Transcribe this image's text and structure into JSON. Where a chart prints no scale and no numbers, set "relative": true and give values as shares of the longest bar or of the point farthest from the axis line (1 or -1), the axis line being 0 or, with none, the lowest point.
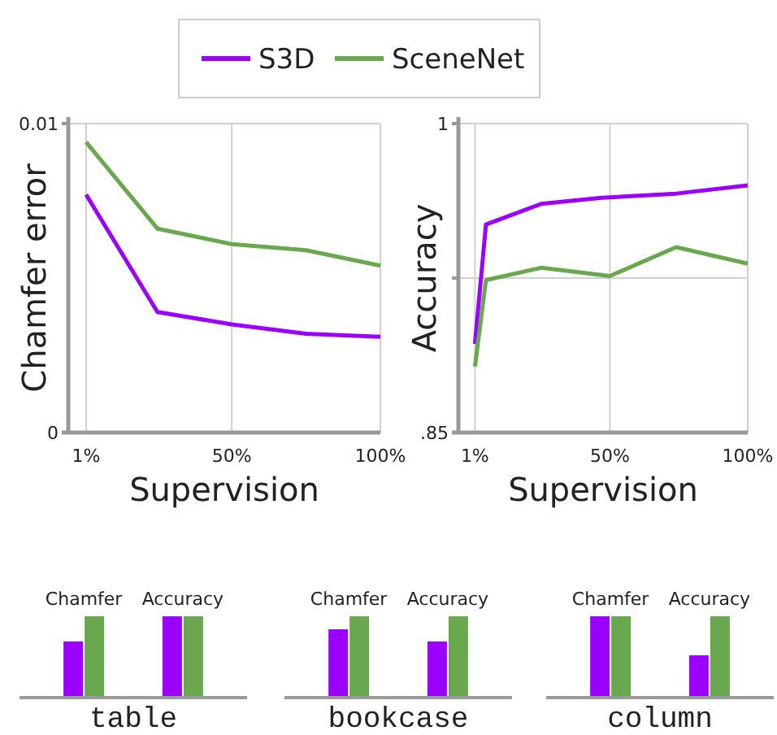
{
  "chart_data": [
    {
      "type": "line",
      "xlabel": "Supervision",
      "ylabel": "Chamfer error",
      "legend": "top",
      "grid": true,
      "xlim": [
        -5,
        100
      ],
      "ylim": [
        0,
        0.01
      ],
      "xticks": [
        {
          "value": 1,
          "label": "1%"
        },
        {
          "value": 50,
          "label": "50%"
        },
        {
          "value": 100,
          "label": "100%"
        }
      ],
      "yticks": [
        0,
        0.01
      ],
      "series": [
        {
          "name": "S3D",
          "color": "#9b00ff",
          "x": [
            1,
            25,
            50,
            75,
            100
          ],
          "values": [
            0.0077,
            0.0039,
            0.0035,
            0.0032,
            0.0031
          ]
        },
        {
          "name": "SceneNet",
          "color": "#6aa84f",
          "x": [
            1,
            25,
            50,
            75,
            100
          ],
          "values": [
            0.0094,
            0.0066,
            0.0061,
            0.0059,
            0.0054
          ]
        }
      ]
    },
    {
      "type": "line",
      "xlabel": "Supervision",
      "ylabel": "Accuracy",
      "grid": true,
      "xlim": [
        -5,
        100
      ],
      "ylim": [
        0.85,
        1
      ],
      "xticks": [
        {
          "value": 1,
          "label": "1%"
        },
        {
          "value": 50,
          "label": "50%"
        },
        {
          "value": 100,
          "label": "100%"
        }
      ],
      "yticks": [
        {
          "value": 0.85,
          "label": ".85"
        },
        {
          "value": 0.925,
          "label": null
        },
        1
      ],
      "series": [
        {
          "color": "#9b00ff",
          "x": [
            1,
            5,
            25,
            47,
            74,
            100
          ],
          "values": [
            0.893,
            0.951,
            0.961,
            0.964,
            0.966,
            0.97
          ]
        },
        {
          "color": "#6aa84f",
          "x": [
            1,
            5,
            25,
            50,
            74,
            100
          ],
          "values": [
            0.882,
            0.924,
            0.93,
            0.926,
            0.94,
            0.932
          ]
        }
      ]
    },
    {
      "type": "bar",
      "xlabel": "table",
      "relative": true,
      "categories": [
        "Chamfer",
        "Accuracy"
      ],
      "series": [
        {
          "color": "#9b00ff",
          "values": [
            0.69,
            1
          ]
        },
        {
          "color": "#6aa84f",
          "values": [
            1,
            1
          ]
        }
      ]
    },
    {
      "type": "bar",
      "xlabel": "bookcase",
      "relative": true,
      "categories": [
        "Chamfer",
        "Accuracy"
      ],
      "series": [
        {
          "color": "#9b00ff",
          "values": [
            0.84,
            0.69
          ]
        },
        {
          "color": "#6aa84f",
          "values": [
            1,
            1
          ]
        }
      ]
    },
    {
      "type": "bar",
      "xlabel": "column",
      "relative": true,
      "categories": [
        "Chamfer",
        "Accuracy"
      ],
      "series": [
        {
          "color": "#9b00ff",
          "values": [
            1,
            0.52
          ]
        },
        {
          "color": "#6aa84f",
          "values": [
            1,
            1
          ]
        }
      ]
    }
  ]
}
